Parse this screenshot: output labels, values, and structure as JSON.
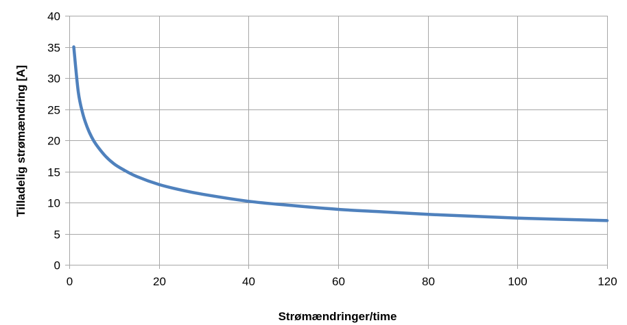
{
  "chart_data": {
    "type": "line",
    "title": "",
    "xlabel": "Strømændringer/time",
    "ylabel": "Tilladelig strømændring [A]",
    "xlim": [
      0,
      120
    ],
    "ylim": [
      0,
      40
    ],
    "xticks": [
      0,
      20,
      40,
      60,
      80,
      100,
      120
    ],
    "yticks": [
      0,
      5,
      10,
      15,
      20,
      25,
      30,
      35,
      40
    ],
    "grid": true,
    "legend": "none",
    "series": [
      {
        "color": "#4f81bd",
        "x": [
          1,
          2,
          3,
          4,
          5,
          6,
          8,
          10,
          12,
          15,
          20,
          25,
          30,
          40,
          50,
          60,
          70,
          80,
          90,
          100,
          110,
          120
        ],
        "y": [
          35,
          27.8,
          24.3,
          22.1,
          20.5,
          19.3,
          17.5,
          16.2,
          15.3,
          14.2,
          12.9,
          12.0,
          11.3,
          10.2,
          9.5,
          8.9,
          8.5,
          8.1,
          7.8,
          7.5,
          7.3,
          7.1
        ]
      }
    ]
  }
}
